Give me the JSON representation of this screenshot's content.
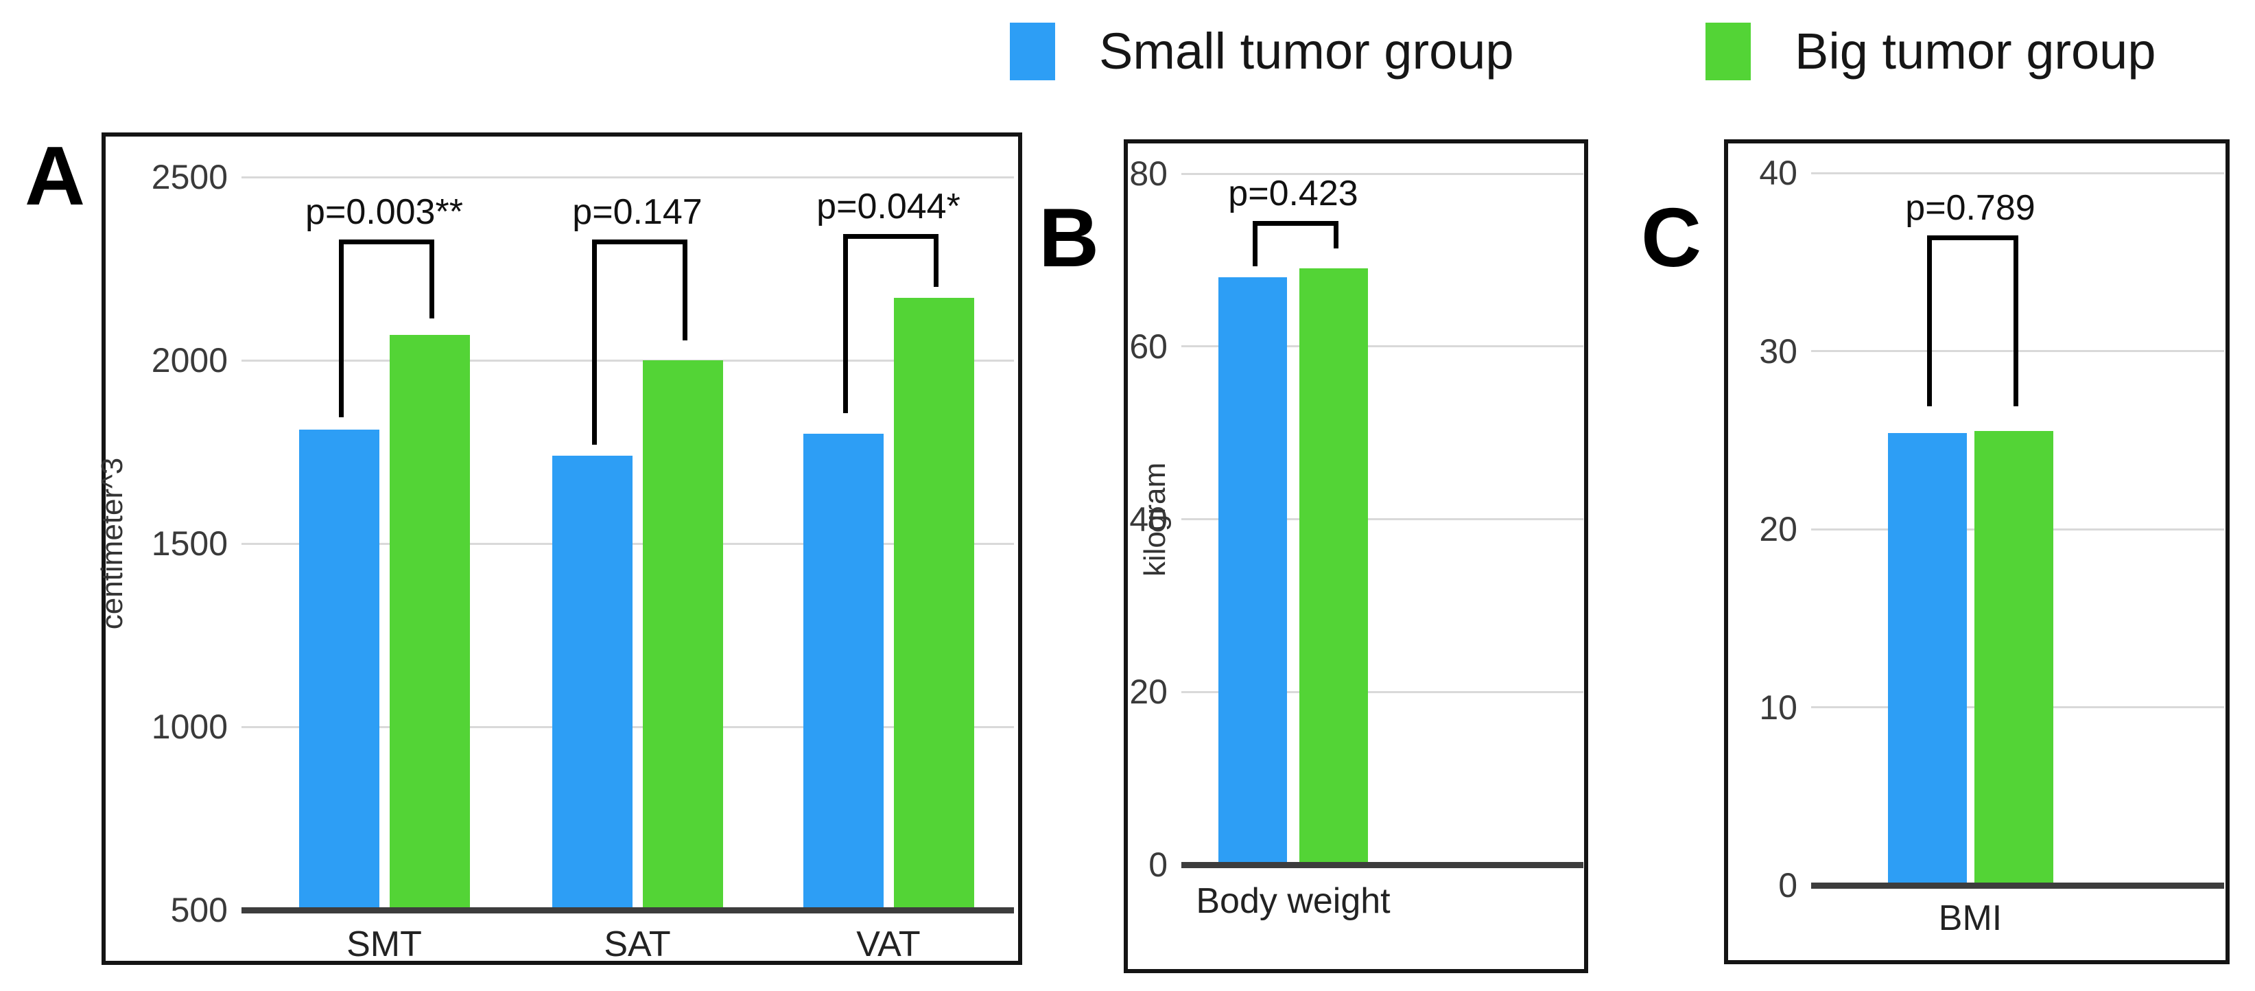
{
  "legend": {
    "items": [
      {
        "label": "Small tumor group",
        "color": "#2D9EF5"
      },
      {
        "label": "Big tumor group",
        "color": "#53D436"
      }
    ]
  },
  "colors": {
    "small_group": "#2D9EF5",
    "big_group": "#53D436",
    "gridline": "#d9d9d9",
    "axis_baseline": "#3d3d3d",
    "panel_border": "#141414",
    "bracket": "#000000"
  },
  "chart_data": [
    {
      "type": "bar",
      "panel": "A",
      "title": "",
      "xlabel": "",
      "ylabel": "centimeter^3",
      "categories": [
        "SMT",
        "SAT",
        "VAT"
      ],
      "series": [
        {
          "name": "Small tumor group",
          "values": [
            1810,
            1740,
            1800
          ]
        },
        {
          "name": "Big tumor group",
          "values": [
            2070,
            2000,
            2170
          ]
        }
      ],
      "yticks": [
        2500,
        2000,
        1500,
        1000,
        500
      ],
      "ylim": [
        500,
        2620
      ],
      "grid": true,
      "legend_position": "top-outside",
      "annotations": [
        {
          "label": "p=0.003**",
          "bracket_top": 2330,
          "arm_bottoms": [
            1845,
            2115
          ]
        },
        {
          "label": "p=0.147",
          "bracket_top": 2330,
          "arm_bottoms": [
            1770,
            2055
          ]
        },
        {
          "label": "p=0.044*",
          "bracket_top": 2345,
          "arm_bottoms": [
            1855,
            2200
          ]
        }
      ]
    },
    {
      "type": "bar",
      "panel": "B",
      "title": "",
      "xlabel": "",
      "ylabel": "kilogram",
      "categories": [
        "Body weight"
      ],
      "series": [
        {
          "name": "Small tumor group",
          "values": [
            68
          ]
        },
        {
          "name": "Big tumor group",
          "values": [
            69
          ]
        }
      ],
      "yticks": [
        80,
        60,
        40,
        20,
        0
      ],
      "ylim": [
        0,
        84
      ],
      "grid": true,
      "legend_position": "top-outside",
      "annotations": [
        {
          "label": "p=0.423",
          "bracket_top": 74.5,
          "arm_bottoms": [
            69.3,
            71.3
          ]
        }
      ]
    },
    {
      "type": "bar",
      "panel": "C",
      "title": "",
      "xlabel": "",
      "ylabel": "",
      "categories": [
        "BMI"
      ],
      "series": [
        {
          "name": "Small tumor group",
          "values": [
            25.4
          ]
        },
        {
          "name": "Big tumor group",
          "values": [
            25.5
          ]
        }
      ],
      "yticks": [
        40,
        30,
        20,
        10,
        0
      ],
      "ylim": [
        0,
        42
      ],
      "grid": true,
      "legend_position": "top-outside",
      "annotations": [
        {
          "label": "p=0.789",
          "bracket_top": 36.5,
          "arm_bottoms": [
            26.9,
            26.9
          ]
        }
      ]
    }
  ]
}
